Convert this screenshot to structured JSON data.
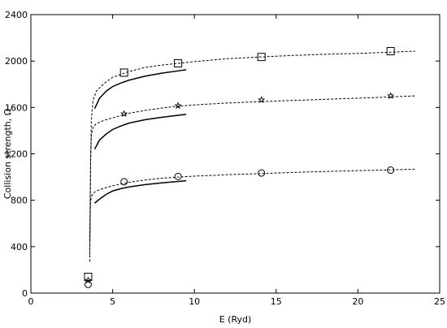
{
  "chart_data": {
    "type": "line",
    "xlabel": "E (Ryd)",
    "ylabel": "Collision strength, Ω",
    "xlim": [
      0,
      25
    ],
    "ylim": [
      0,
      2400
    ],
    "xticks": [
      0,
      5,
      10,
      15,
      20,
      25
    ],
    "yticks": [
      0,
      400,
      800,
      1200,
      1600,
      2000,
      2400
    ],
    "grid": false,
    "series": [
      {
        "style": "dashed",
        "group": "top",
        "x": [
          3.6,
          3.65,
          3.7,
          3.8,
          4.0,
          4.5,
          5.0,
          6.0,
          7.0,
          8.0,
          9.0,
          10.0,
          12.0,
          14.0,
          16.0,
          18.0,
          20.0,
          22.0,
          23.5
        ],
        "y": [
          270,
          1100,
          1500,
          1660,
          1740,
          1810,
          1860,
          1910,
          1945,
          1965,
          1980,
          1995,
          2020,
          2035,
          2048,
          2058,
          2066,
          2076,
          2085
        ]
      },
      {
        "style": "solid",
        "group": "top",
        "x": [
          3.9,
          4.2,
          4.6,
          5.0,
          5.5,
          6.0,
          7.0,
          8.0,
          9.0,
          9.5
        ],
        "y": [
          1590,
          1680,
          1740,
          1780,
          1810,
          1835,
          1870,
          1895,
          1915,
          1925
        ]
      },
      {
        "style": "dashed",
        "group": "middle",
        "x": [
          3.6,
          3.65,
          3.7,
          3.8,
          4.0,
          4.5,
          5.0,
          6.0,
          7.0,
          8.0,
          9.0,
          10.0,
          12.0,
          14.0,
          16.0,
          18.0,
          20.0,
          22.0,
          23.5
        ],
        "y": [
          330,
          1150,
          1360,
          1430,
          1460,
          1490,
          1510,
          1550,
          1575,
          1595,
          1610,
          1622,
          1638,
          1650,
          1660,
          1670,
          1680,
          1690,
          1700
        ]
      },
      {
        "style": "solid",
        "group": "middle",
        "x": [
          3.9,
          4.2,
          4.6,
          5.0,
          5.5,
          6.0,
          7.0,
          8.0,
          9.0,
          9.5
        ],
        "y": [
          1240,
          1320,
          1370,
          1410,
          1440,
          1465,
          1495,
          1515,
          1532,
          1540
        ]
      },
      {
        "style": "dashed",
        "group": "bottom",
        "x": [
          3.6,
          3.65,
          3.7,
          3.8,
          4.0,
          4.5,
          5.0,
          6.0,
          7.0,
          8.0,
          9.0,
          10.0,
          12.0,
          14.0,
          16.0,
          18.0,
          20.0,
          22.0,
          23.5
        ],
        "y": [
          450,
          790,
          830,
          860,
          880,
          905,
          925,
          955,
          975,
          990,
          1000,
          1008,
          1020,
          1030,
          1040,
          1048,
          1055,
          1062,
          1068
        ]
      },
      {
        "style": "solid",
        "group": "bottom",
        "x": [
          3.9,
          4.2,
          4.6,
          5.0,
          5.5,
          6.0,
          7.0,
          8.0,
          9.0,
          9.5
        ],
        "y": [
          775,
          810,
          850,
          880,
          900,
          915,
          935,
          950,
          962,
          968
        ]
      }
    ],
    "markers": [
      {
        "shape": "square",
        "x": [
          3.5,
          5.7,
          9.0,
          14.1,
          22.0
        ],
        "y": [
          140,
          1900,
          1980,
          2035,
          2085
        ]
      },
      {
        "shape": "star",
        "x": [
          3.5,
          5.7,
          9.0,
          14.1,
          22.0
        ],
        "y": [
          110,
          1545,
          1615,
          1665,
          1700
        ]
      },
      {
        "shape": "circle",
        "x": [
          3.5,
          5.7,
          9.0,
          14.1,
          22.0
        ],
        "y": [
          75,
          960,
          1005,
          1035,
          1060
        ]
      }
    ]
  }
}
